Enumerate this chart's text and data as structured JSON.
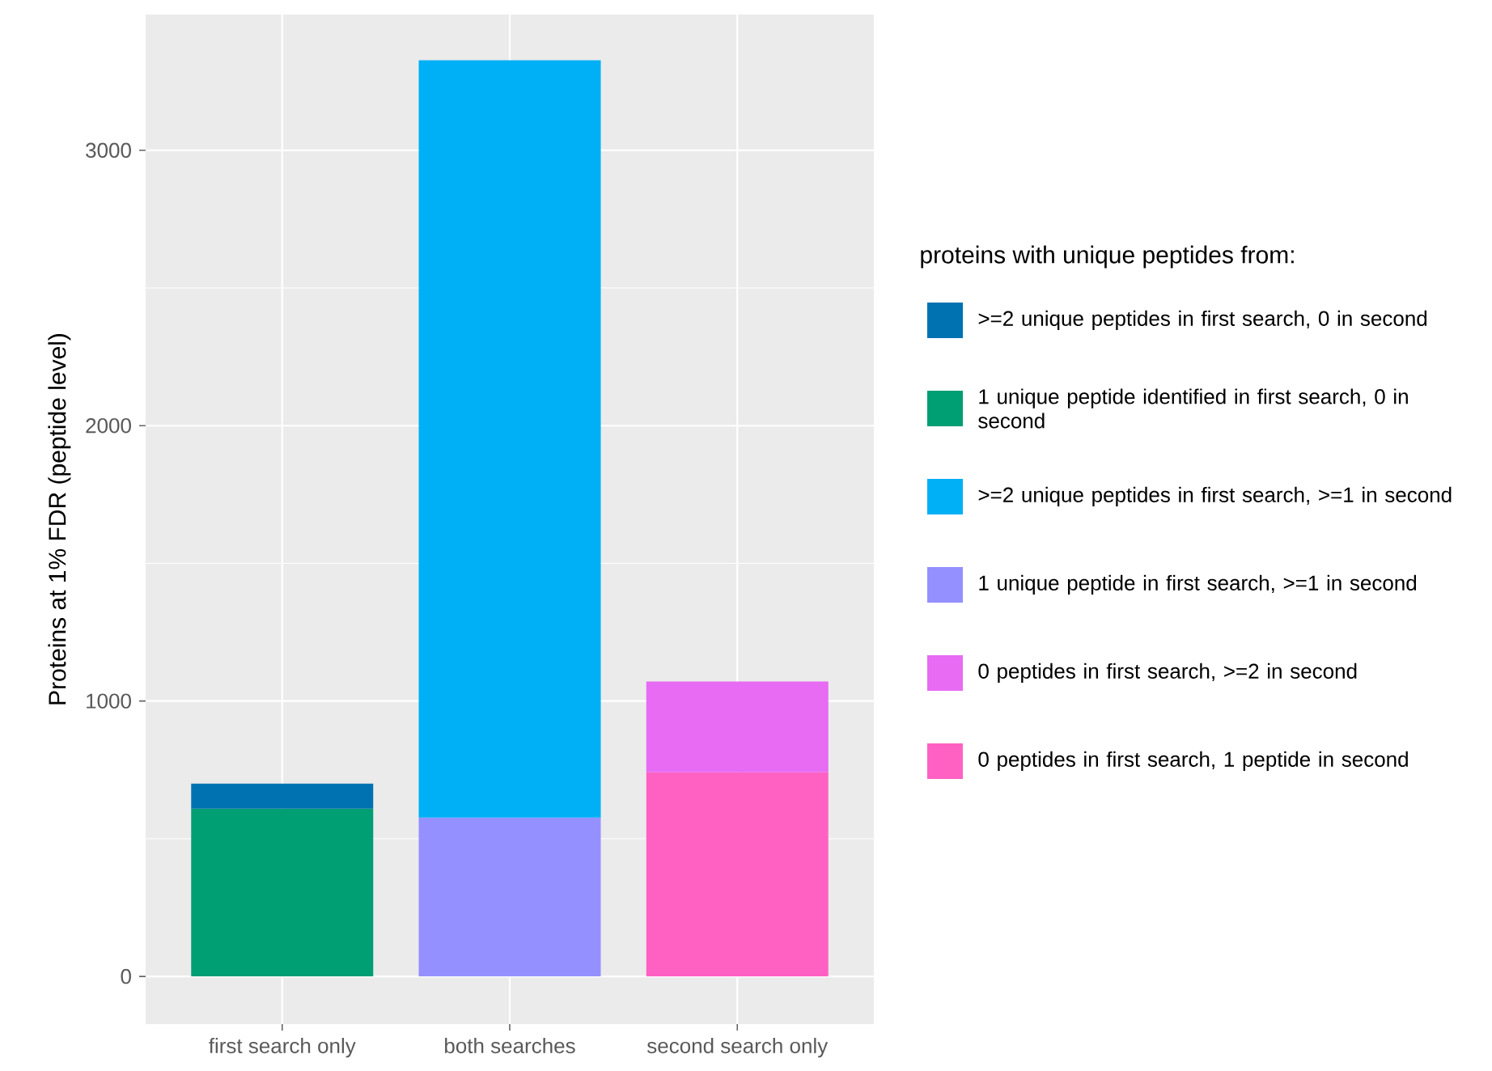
{
  "chart_data": {
    "type": "bar",
    "stacked": true,
    "ylabel": "Proteins at 1% FDR (peptide level)",
    "legend_title": "proteins with unique peptides from:",
    "categories": [
      "first search only",
      "both searches",
      "second search only"
    ],
    "series": [
      {
        "name": "0 peptides in first search, 1 peptide in second",
        "color": "#ff61c3",
        "values": [
          null,
          null,
          741
        ]
      },
      {
        "name": "0 peptides in first search, >=2 in second",
        "color": "#e76bf3",
        "values": [
          null,
          null,
          330
        ]
      },
      {
        "name": "1 unique peptide in first search, >=1 in second",
        "color": "#9590ff",
        "values": [
          null,
          577,
          null
        ]
      },
      {
        "name": ">=2 unique peptides in first search, >=1 in second",
        "color": "#00b0f6",
        "values": [
          null,
          2750,
          null
        ]
      },
      {
        "name": "1 unique peptide identified in first search, 0 in second",
        "color": "#009e73",
        "values": [
          609,
          null,
          null
        ]
      },
      {
        "name": ">=2 unique peptides in first search, 0 in second",
        "color": "#0072b2",
        "values": [
          91,
          null,
          null
        ]
      }
    ],
    "ylim": [
      -173,
      3493
    ],
    "yticks": [
      0,
      1000,
      2000,
      3000
    ],
    "grid": true,
    "legend": "right"
  }
}
